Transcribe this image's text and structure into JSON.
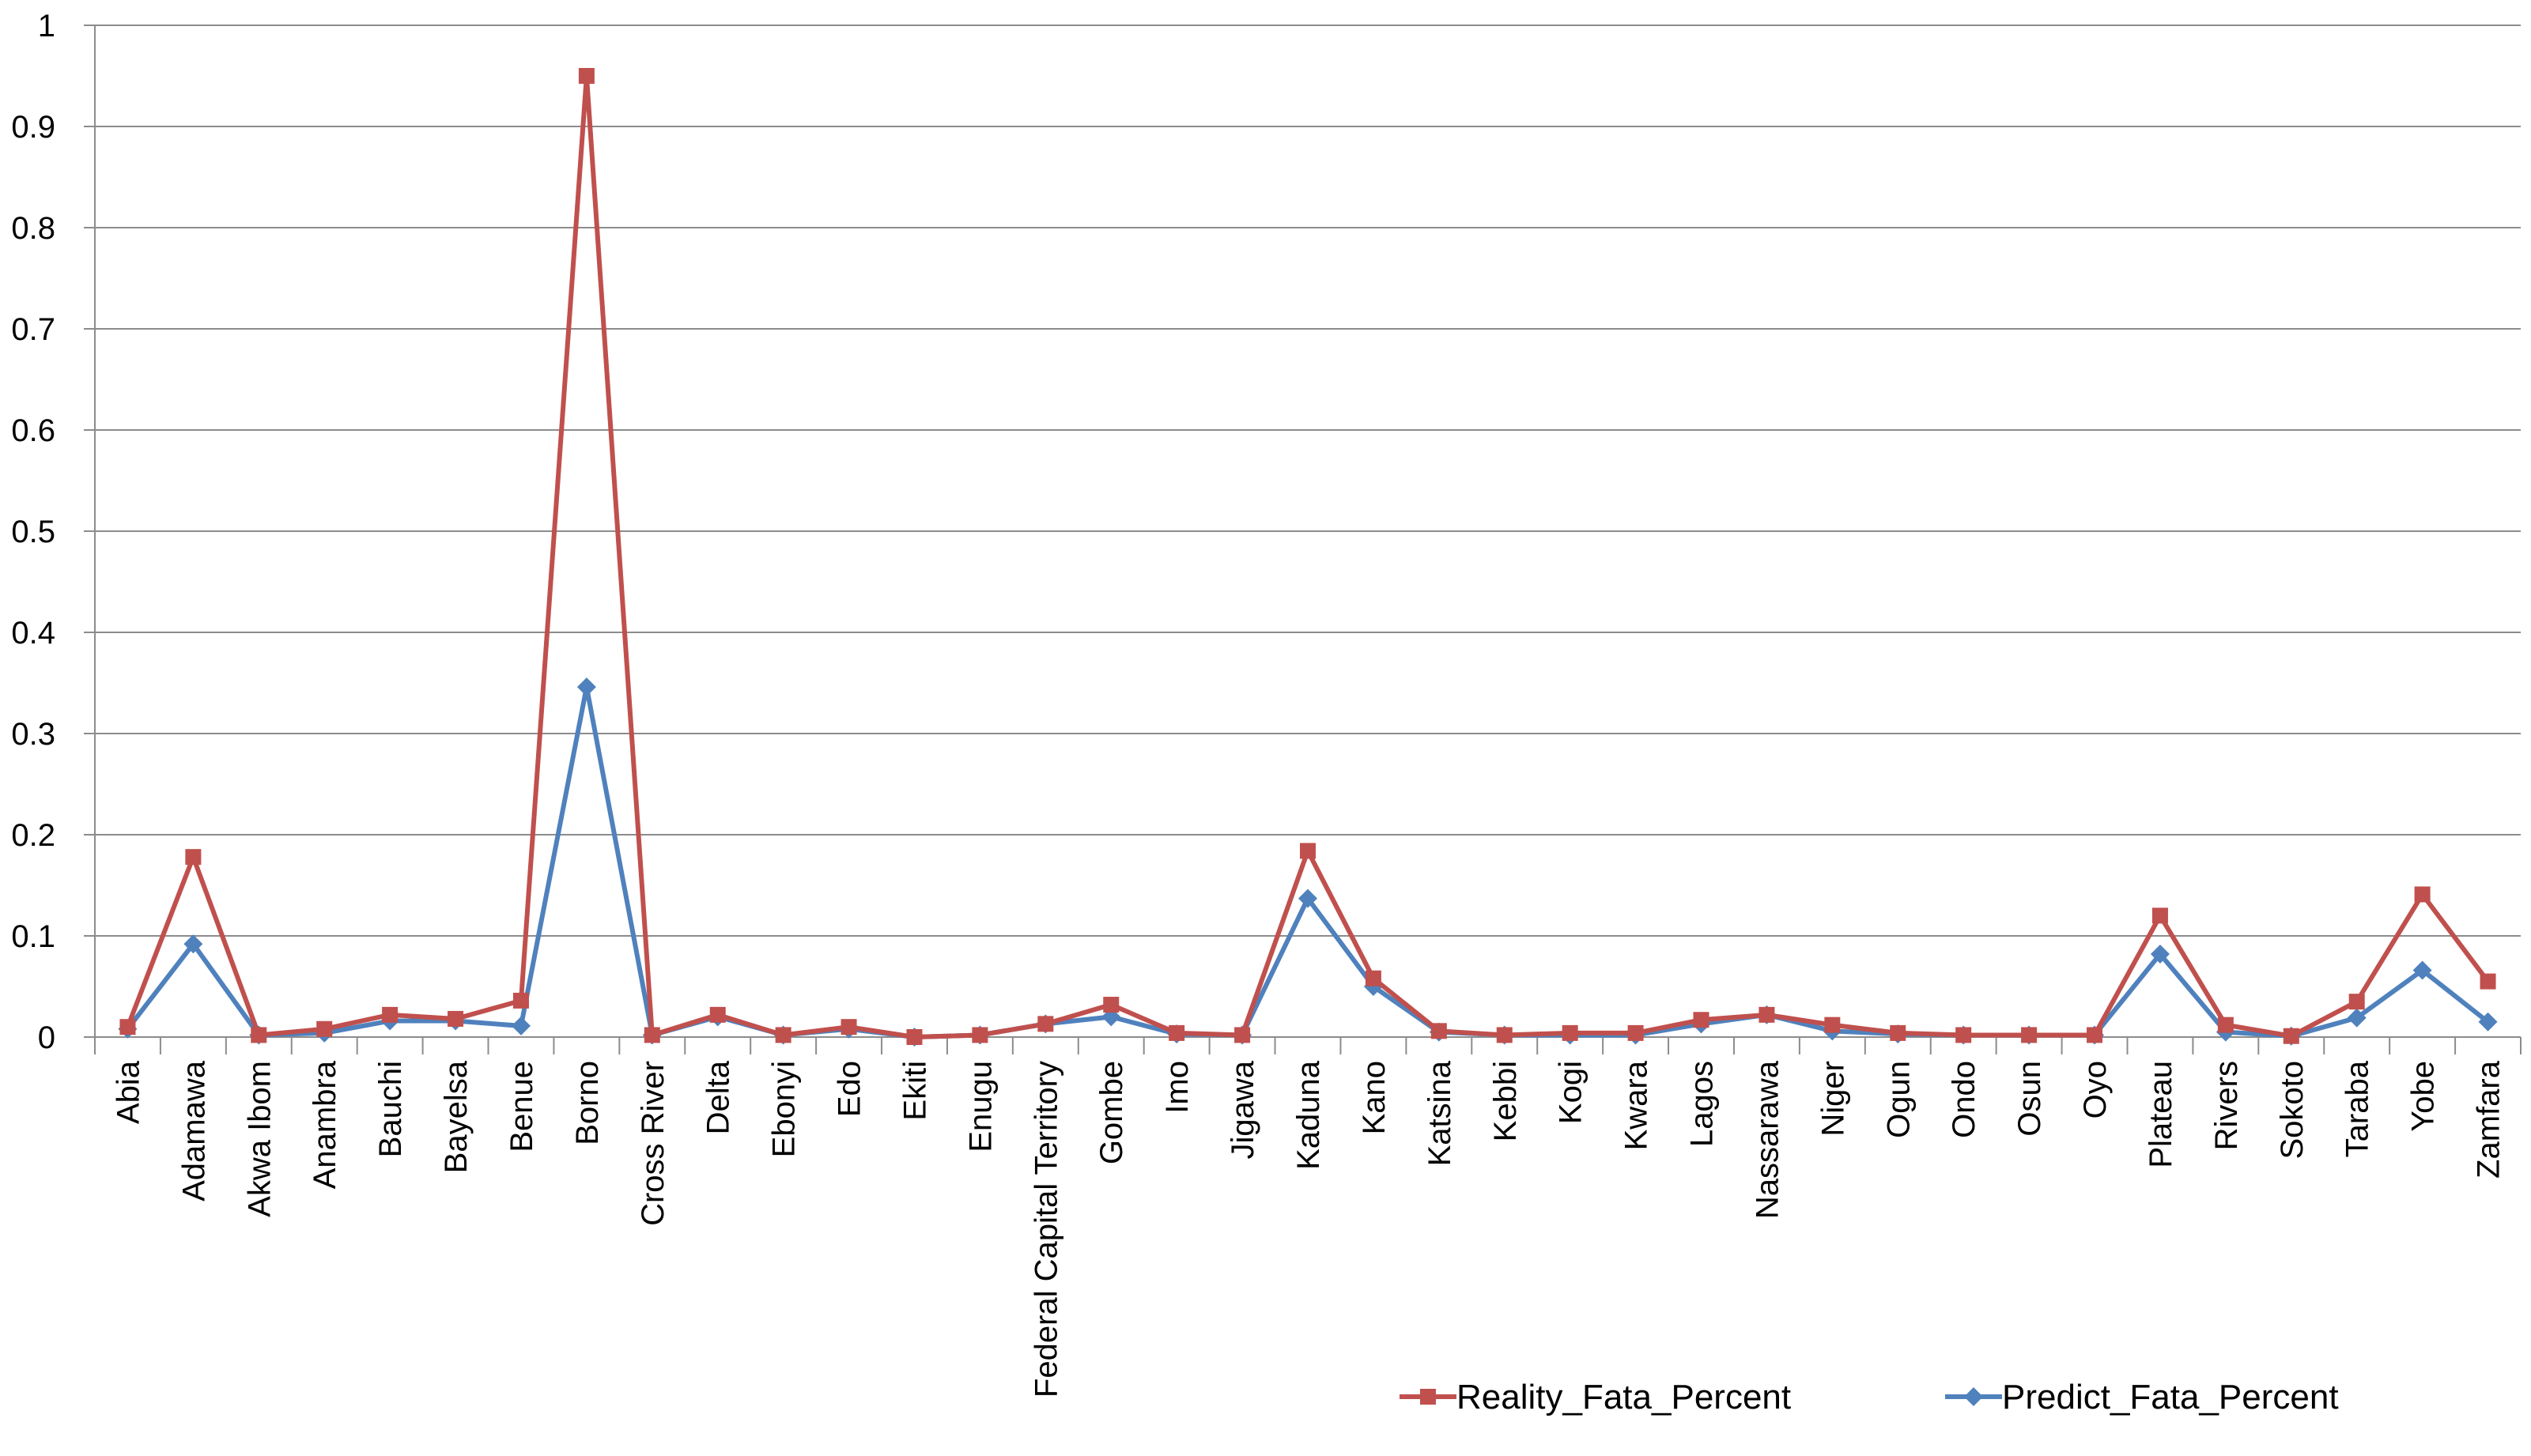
{
  "chart_data": {
    "type": "line",
    "categories": [
      "Abia",
      "Adamawa",
      "Akwa Ibom",
      "Anambra",
      "Bauchi",
      "Bayelsa",
      "Benue",
      "Borno",
      "Cross River",
      "Delta",
      "Ebonyi",
      "Edo",
      "Ekiti",
      "Enugu",
      "Federal Capital Territory",
      "Gombe",
      "Imo",
      "Jigawa",
      "Kaduna",
      "Kano",
      "Katsina",
      "Kebbi",
      "Kogi",
      "Kwara",
      "Lagos",
      "Nassarawa",
      "Niger",
      "Ogun",
      "Ondo",
      "Osun",
      "Oyo",
      "Plateau",
      "Rivers",
      "Sokoto",
      "Taraba",
      "Yobe",
      "Zamfara"
    ],
    "series": [
      {
        "name": "Reality_Fata_Percent",
        "color": "#C0504D",
        "marker": "square",
        "values": [
          0.01,
          0.178,
          0.002,
          0.008,
          0.022,
          0.018,
          0.036,
          0.95,
          0.002,
          0.022,
          0.002,
          0.01,
          0.0,
          0.002,
          0.013,
          0.032,
          0.004,
          0.002,
          0.184,
          0.058,
          0.006,
          0.002,
          0.004,
          0.004,
          0.017,
          0.022,
          0.012,
          0.004,
          0.002,
          0.002,
          0.002,
          0.12,
          0.012,
          0.001,
          0.035,
          0.141,
          0.055
        ]
      },
      {
        "name": "Predict_Fata_Percent",
        "color": "#4F81BD",
        "marker": "diamond",
        "values": [
          0.008,
          0.092,
          0.002,
          0.004,
          0.016,
          0.016,
          0.011,
          0.346,
          0.002,
          0.02,
          0.002,
          0.008,
          0.0,
          0.002,
          0.013,
          0.02,
          0.003,
          0.002,
          0.137,
          0.05,
          0.005,
          0.002,
          0.002,
          0.002,
          0.013,
          0.022,
          0.006,
          0.003,
          0.002,
          0.002,
          0.002,
          0.082,
          0.005,
          0.001,
          0.019,
          0.066,
          0.015
        ]
      }
    ],
    "y_ticks": [
      "0",
      "0.1",
      "0.2",
      "0.3",
      "0.4",
      "0.5",
      "0.6",
      "0.7",
      "0.8",
      "0.9",
      "1"
    ],
    "ylim": [
      0,
      1
    ],
    "grid": true,
    "legend_position": "bottom-right"
  }
}
